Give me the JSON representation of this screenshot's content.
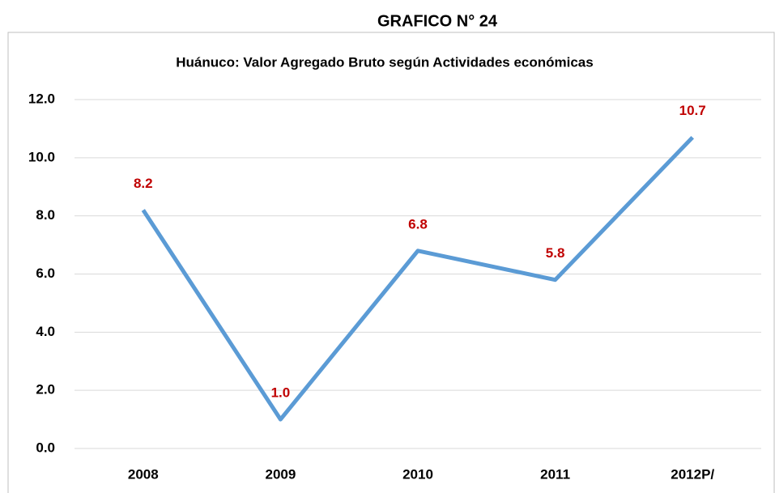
{
  "heading": "GRAFICO N° 24",
  "chart_data": {
    "type": "line",
    "title": "Huánuco: Valor Agregado Bruto según Actividades económicas",
    "categories": [
      "2008",
      "2009",
      "2010",
      "2011",
      "2012P/"
    ],
    "series": [
      {
        "name": "Valor Agregado Bruto",
        "color": "#5b9bd5",
        "values": [
          8.2,
          1.0,
          6.8,
          5.8,
          10.7
        ],
        "value_labels": [
          "8.2",
          "1.0",
          "6.8",
          "5.8",
          "10.7"
        ]
      }
    ],
    "label_color": "#c00000",
    "ylim": [
      0,
      12
    ],
    "yticks": [
      {
        "value": 0,
        "label": "0.0"
      },
      {
        "value": 2,
        "label": "2.0"
      },
      {
        "value": 4,
        "label": "4.0"
      },
      {
        "value": 6,
        "label": "6.0"
      },
      {
        "value": 8,
        "label": "8.0"
      },
      {
        "value": 10,
        "label": "10.0"
      },
      {
        "value": 12,
        "label": "12.0"
      }
    ],
    "grid": true
  }
}
